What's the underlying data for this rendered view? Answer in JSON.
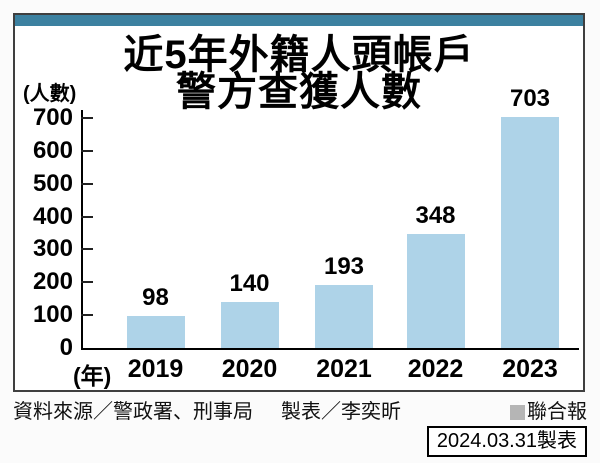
{
  "title": {
    "line1": "近5年外籍人頭帳戶",
    "line2": "警方查獲人數"
  },
  "axes": {
    "y_unit": "(人數)",
    "x_unit": "(年)"
  },
  "chart_data": {
    "type": "bar",
    "title": "近5年外籍人頭帳戶警方查獲人數",
    "categories": [
      "2019",
      "2020",
      "2021",
      "2022",
      "2023"
    ],
    "values": [
      98,
      140,
      193,
      348,
      703
    ],
    "xlabel": "年",
    "ylabel": "人數",
    "ylim": [
      0,
      700
    ],
    "yticks": [
      0,
      100,
      200,
      300,
      400,
      500,
      600,
      700
    ],
    "grid": false,
    "legend": "none",
    "value_labels": true
  },
  "colors": {
    "header_strip": "#3c81a0",
    "bar": "#aed3e8",
    "brand_square": "#b5b5b5",
    "axis": "#000000"
  },
  "footer": {
    "source": "資料來源／警政署、刑事局",
    "credit": "製表／李奕昕",
    "brand": "聯合報",
    "date_note": "2024.03.31製表"
  }
}
